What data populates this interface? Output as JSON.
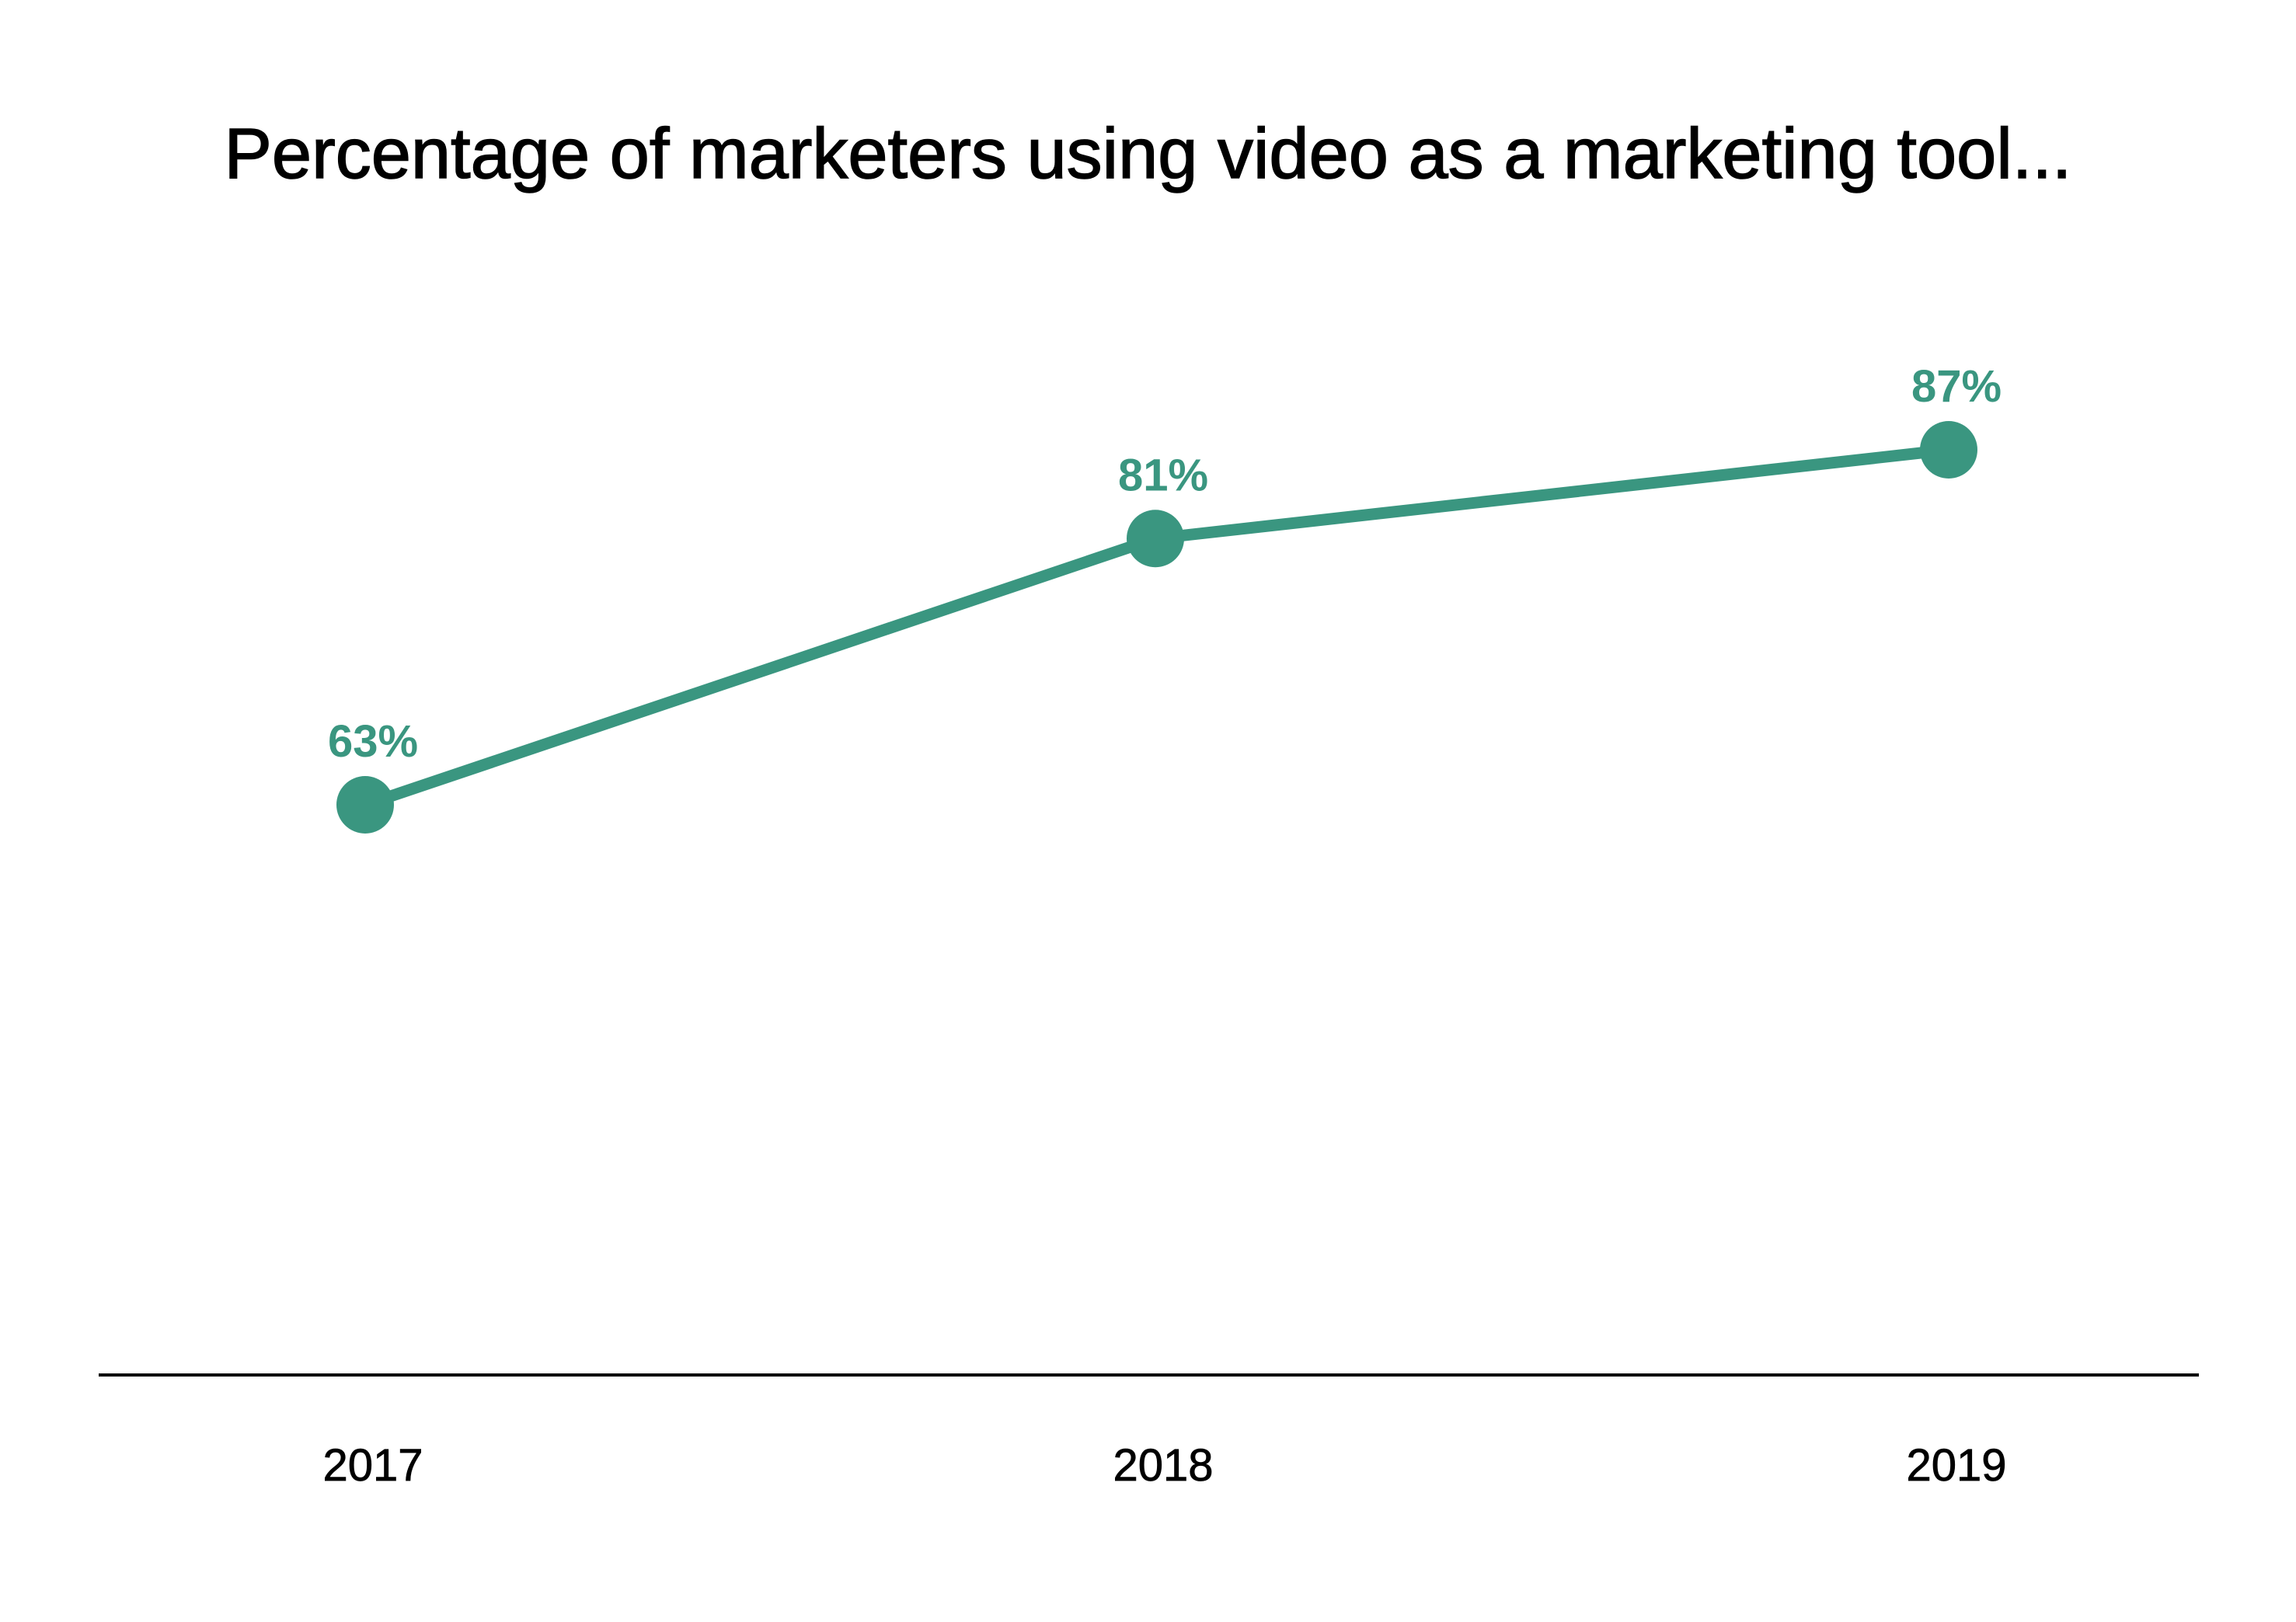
{
  "chart_data": {
    "type": "line",
    "title": "Percentage of marketers using video as a marketing tool...",
    "categories": [
      "2017",
      "2018",
      "2019"
    ],
    "series": [
      {
        "values": [
          63,
          81,
          87
        ],
        "data_labels": [
          "63%",
          "81%",
          "87%"
        ],
        "color": "#3a9680"
      }
    ],
    "xlabel": "",
    "ylabel": "",
    "ylim": [
      0,
      100
    ],
    "grid": false,
    "legend": "none",
    "axis_color": "#000000"
  }
}
